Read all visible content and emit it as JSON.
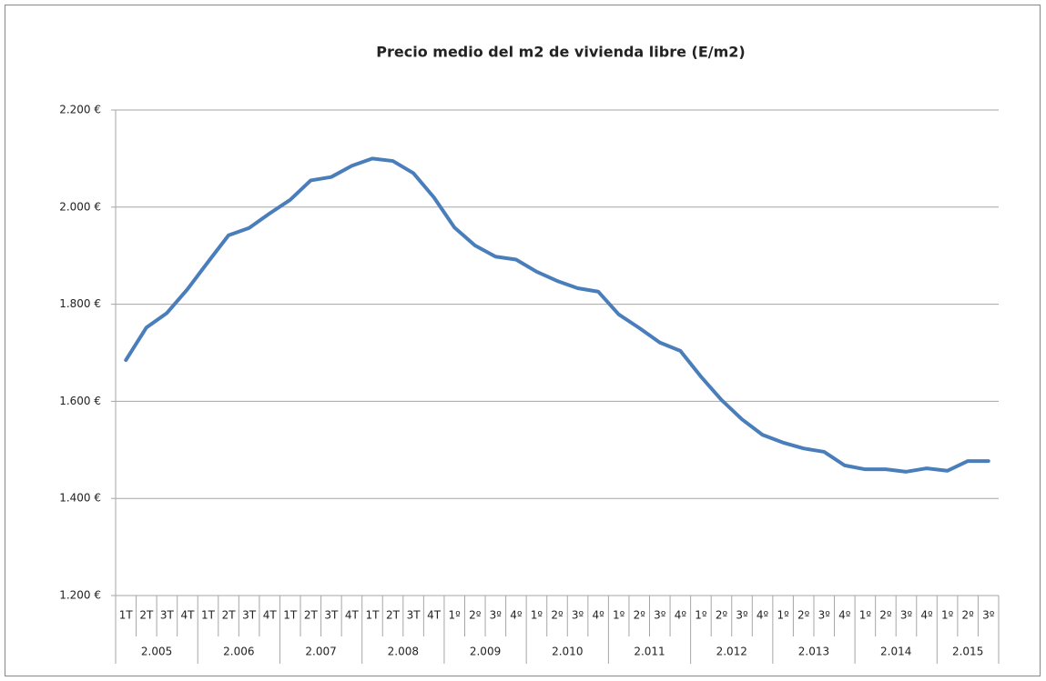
{
  "chart_data": {
    "type": "line",
    "title": "Precio medio del m2 de vivienda libre (E/m2)",
    "groups": [
      {
        "label": "2.005",
        "categories": [
          "1T",
          "2T",
          "3T",
          "4T"
        ]
      },
      {
        "label": "2.006",
        "categories": [
          "1T",
          "2T",
          "3T",
          "4T"
        ]
      },
      {
        "label": "2.007",
        "categories": [
          "1T",
          "2T",
          "3T",
          "4T"
        ]
      },
      {
        "label": "2.008",
        "categories": [
          "1T",
          "2T",
          "3T",
          "4T"
        ]
      },
      {
        "label": "2.009",
        "categories": [
          "1º",
          "2º",
          "3º",
          "4º"
        ]
      },
      {
        "label": "2.010",
        "categories": [
          "1º",
          "2º",
          "3º",
          "4º"
        ]
      },
      {
        "label": "2.011",
        "categories": [
          "1º",
          "2º",
          "3º",
          "4º"
        ]
      },
      {
        "label": "2.012",
        "categories": [
          "1º",
          "2º",
          "3º",
          "4º"
        ]
      },
      {
        "label": "2.013",
        "categories": [
          "1º",
          "2º",
          "3º",
          "4º"
        ]
      },
      {
        "label": "2.014",
        "categories": [
          "1º",
          "2º",
          "3º",
          "4º"
        ]
      },
      {
        "label": "2.015",
        "categories": [
          "1º",
          "2º",
          "3º"
        ]
      }
    ],
    "values": [
      1685,
      1752,
      1782,
      1831,
      1887,
      1942,
      1957,
      1987,
      2015,
      2055,
      2062,
      2085,
      2100,
      2095,
      2070,
      2020,
      1958,
      1921,
      1898,
      1892,
      1867,
      1848,
      1833,
      1826,
      1779,
      1751,
      1721,
      1704,
      1651,
      1603,
      1563,
      1531,
      1515,
      1503,
      1496,
      1468,
      1460,
      1460,
      1455,
      1462,
      1457,
      1477,
      1477
    ],
    "color": "#4a7ebb",
    "ylim": [
      1200,
      2200
    ],
    "yticks": [
      {
        "value": 1200,
        "label": "1.200 €"
      },
      {
        "value": 1400,
        "label": "1.400 €"
      },
      {
        "value": 1600,
        "label": "1.600 €"
      },
      {
        "value": 1800,
        "label": "1.800 €"
      },
      {
        "value": 2000,
        "label": "2.000 €"
      },
      {
        "value": 2200,
        "label": "2.200 €"
      }
    ],
    "grid": true
  }
}
